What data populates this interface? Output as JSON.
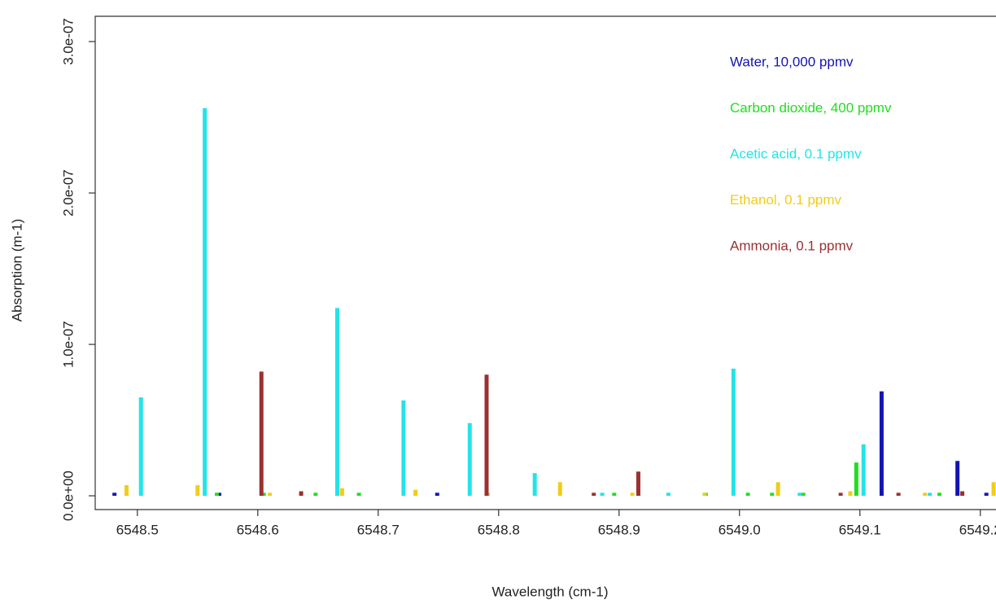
{
  "chart_data": {
    "type": "spike",
    "x_label": "Wavelength (cm-1)",
    "y_label": "Absorption (m-1)",
    "xlim": [
      6548.465,
      6549.213
    ],
    "ylim": [
      -9.1e-09,
      3.167e-07
    ],
    "xticks": [
      6548.5,
      6548.6,
      6548.7,
      6548.8,
      6548.9,
      {
        "value": 6549,
        "label": "6549.0"
      },
      6549.1,
      6549.2
    ],
    "yticks": [
      {
        "value": 0,
        "label": "0.0e+00"
      },
      {
        "value": 1e-07,
        "label": "1.0e-07"
      },
      {
        "value": 2e-07,
        "label": "2.0e-07"
      },
      {
        "value": 3e-07,
        "label": "3.0e-07"
      }
    ],
    "legend_position": "top-right",
    "series": [
      {
        "name": "Water, 10,000 ppmv",
        "color": "#1414b4",
        "x": [
          6548.481,
          6548.568,
          6548.749,
          6549.118,
          6549.181,
          6549.205
        ],
        "values": [
          2e-09,
          2e-09,
          2e-09,
          6.9e-08,
          2.3e-08,
          2e-09
        ]
      },
      {
        "name": "Carbon dioxide, 400 ppmv",
        "color": "#22dd22",
        "x": [
          6548.566,
          6548.605,
          6548.648,
          6548.684,
          6548.896,
          6548.972,
          6549.007,
          6549.027,
          6549.053,
          6549.097,
          6549.166
        ],
        "values": [
          2e-09,
          2e-09,
          2e-09,
          2e-09,
          2e-09,
          2e-09,
          2e-09,
          2e-09,
          2e-09,
          2.2e-08,
          2e-09
        ]
      },
      {
        "name": "Acetic acid, 0.1 ppmv",
        "color": "#22e4e8",
        "x": [
          6548.503,
          6548.556,
          6548.666,
          6548.721,
          6548.776,
          6548.83,
          6548.886,
          6548.941,
          6548.995,
          6549.05,
          6549.103,
          6549.158
        ],
        "values": [
          6.5e-08,
          2.56e-07,
          1.24e-07,
          6.3e-08,
          4.8e-08,
          1.5e-08,
          2e-09,
          2e-09,
          8.4e-08,
          2e-09,
          3.4e-08,
          2e-09
        ]
      },
      {
        "name": "Ethanol, 0.1 ppmv",
        "color": "#f0cd17",
        "x": [
          6548.491,
          6548.55,
          6548.61,
          6548.67,
          6548.731,
          6548.791,
          6548.851,
          6548.911,
          6548.971,
          6549.032,
          6549.092,
          6549.154,
          6549.211
        ],
        "values": [
          7e-09,
          7e-09,
          2e-09,
          5e-09,
          4e-09,
          2e-09,
          9e-09,
          2e-09,
          2e-09,
          9e-09,
          3e-09,
          2e-09,
          9e-09
        ]
      },
      {
        "name": "Ammonia, 0.1 ppmv",
        "color": "#9b3030",
        "x": [
          6548.603,
          6548.636,
          6548.79,
          6548.879,
          6548.916,
          6549.084,
          6549.132,
          6549.185
        ],
        "values": [
          8.2e-08,
          3e-09,
          8e-08,
          2e-09,
          1.6e-08,
          2e-09,
          2e-09,
          3e-09
        ]
      }
    ]
  }
}
